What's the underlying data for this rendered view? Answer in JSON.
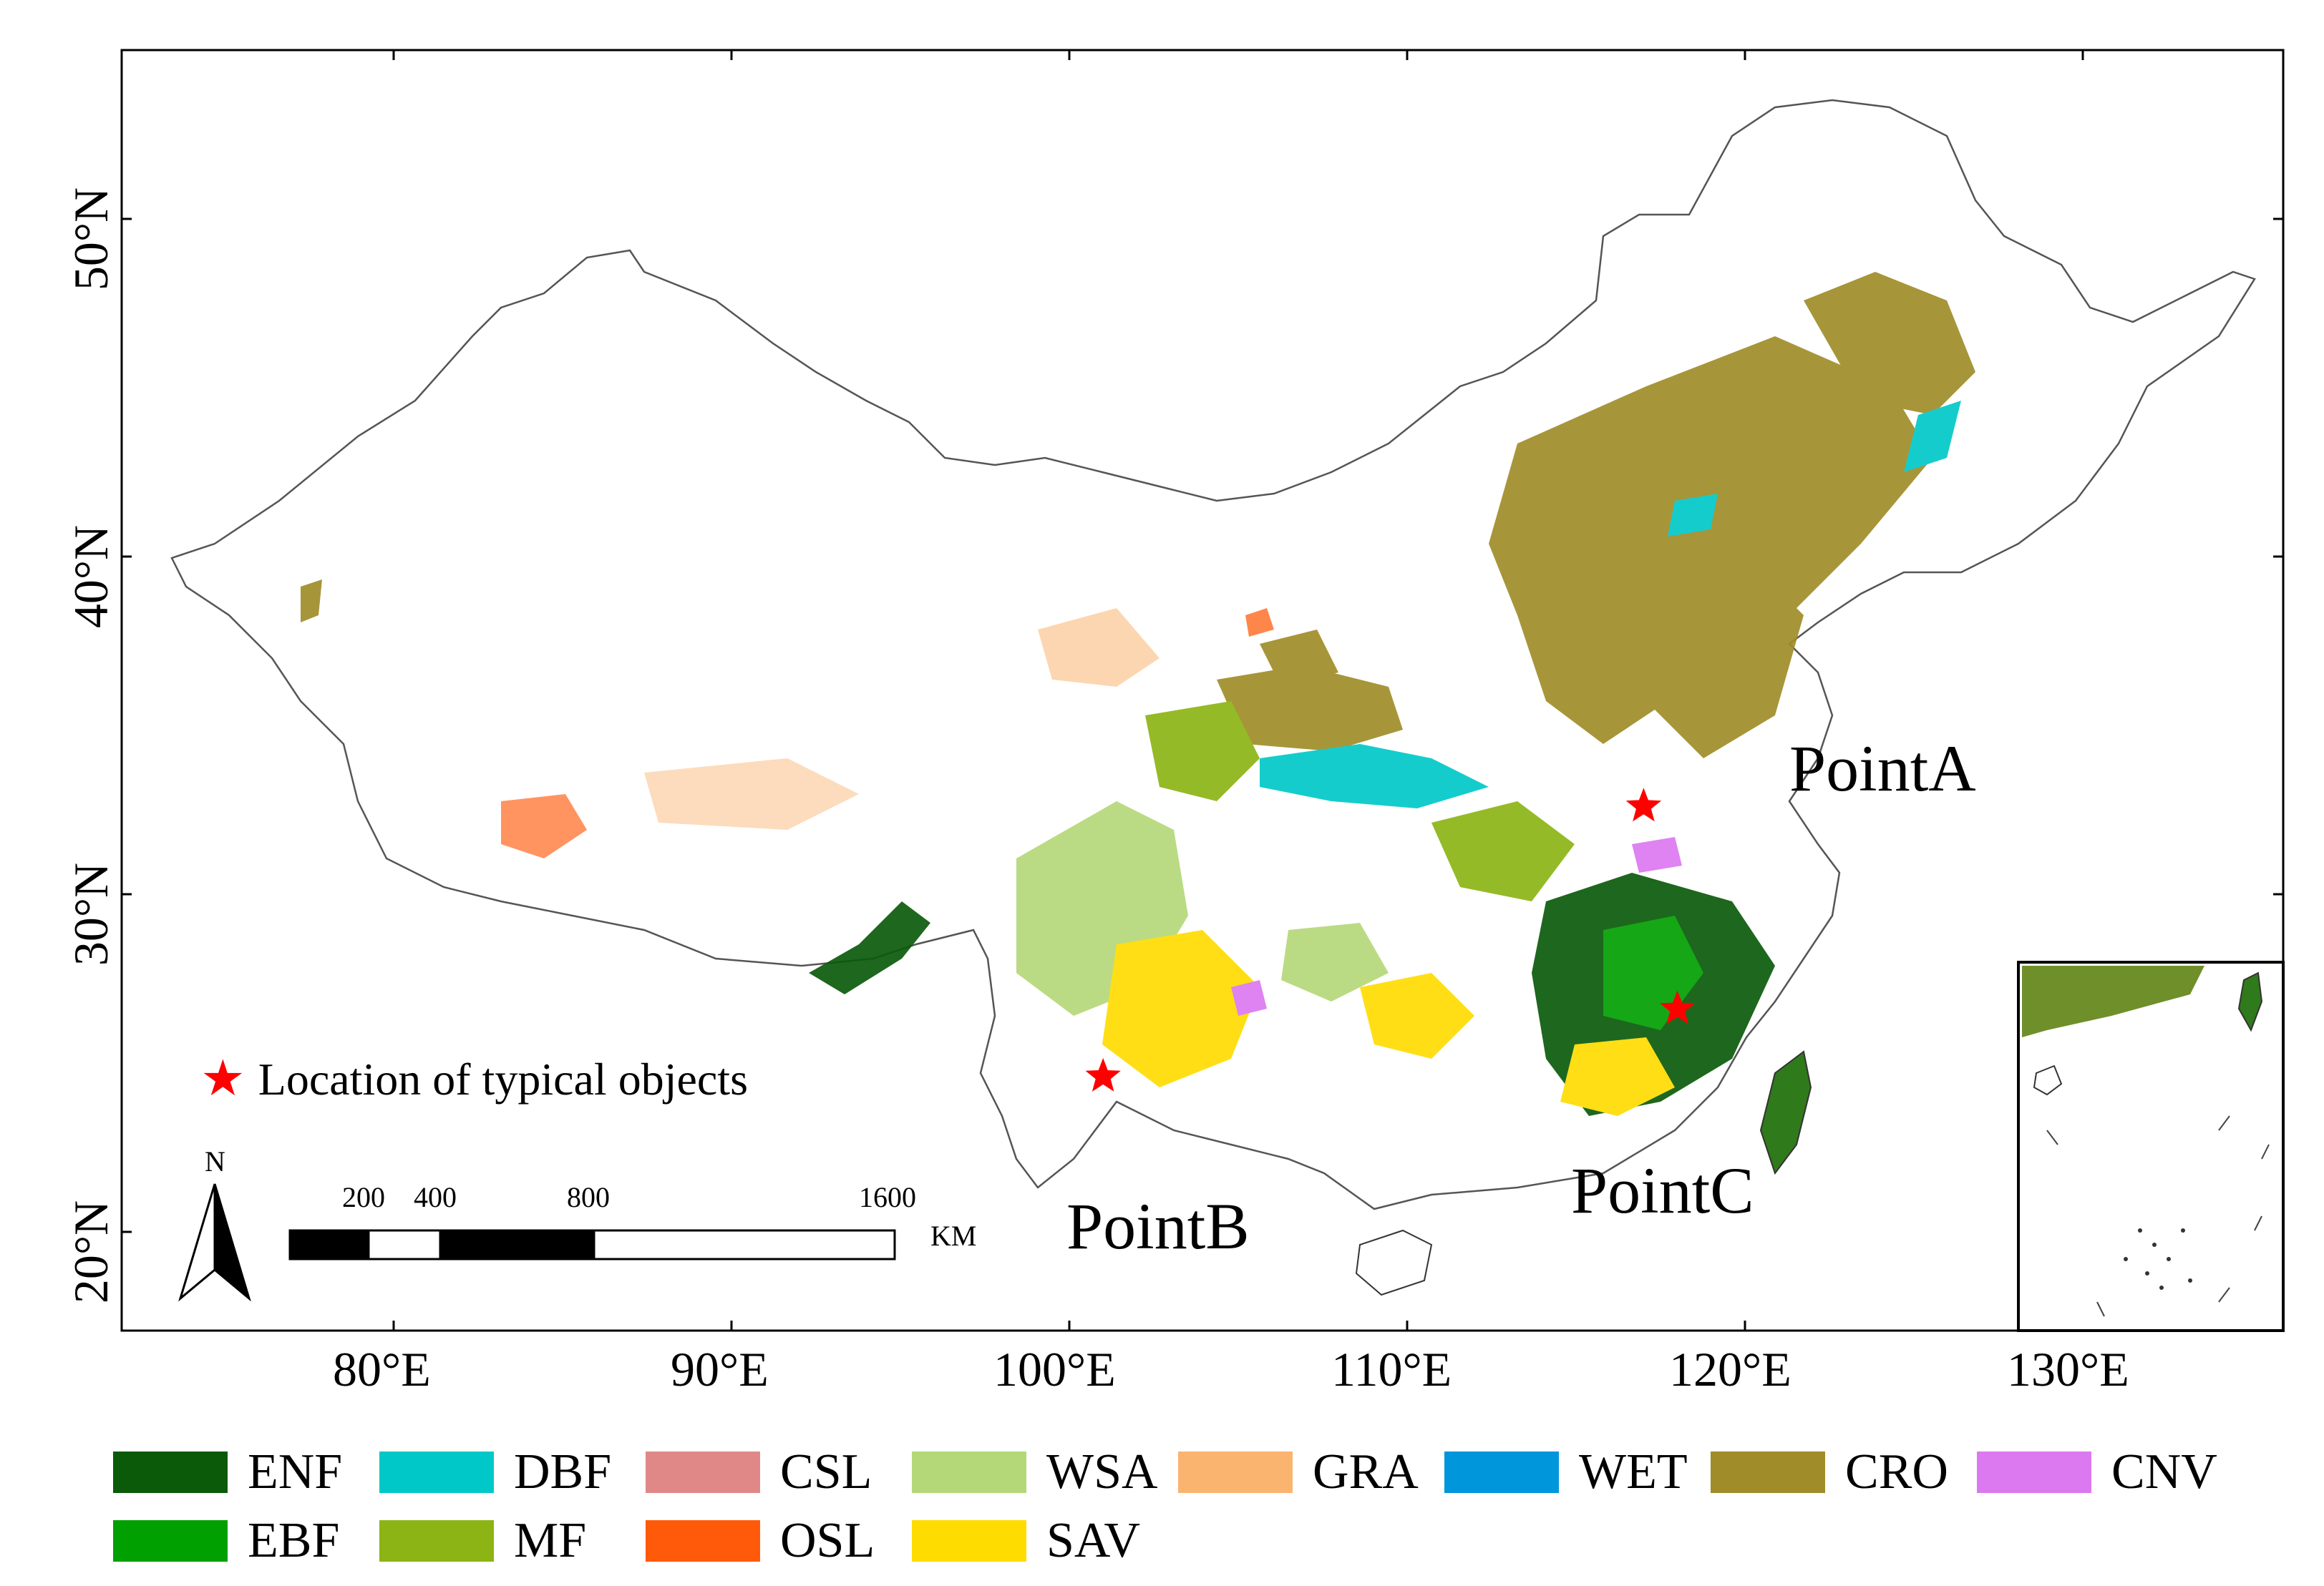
{
  "map": {
    "lat_labels": [
      "50°N",
      "40°N",
      "30°N",
      "20°N"
    ],
    "lon_labels": [
      "80°E",
      "90°E",
      "100°E",
      "110°E",
      "120°E",
      "130°E"
    ]
  },
  "points": [
    {
      "label": "PointA",
      "lon": 117.0,
      "lat": 32.6
    },
    {
      "label": "PointB",
      "lon": 101.0,
      "lat": 24.6
    },
    {
      "label": "PointC",
      "lon": 118.0,
      "lat": 26.6
    }
  ],
  "marker_legend": {
    "label": "Location of typical objects",
    "color": "#ff0000"
  },
  "scale_bar": {
    "ticks": [
      "200",
      "400",
      "800",
      "1600"
    ],
    "unit": "KM"
  },
  "north_arrow": {
    "label": "N"
  },
  "legend": {
    "rows": [
      [
        {
          "code": "ENF",
          "color": "#0a5a0a"
        },
        {
          "code": "DBF",
          "color": "#00c8c8"
        },
        {
          "code": "CSL",
          "color": "#e08888"
        },
        {
          "code": "WSA",
          "color": "#b4d878"
        },
        {
          "code": "GRA",
          "color": "#fab470"
        },
        {
          "code": "WET",
          "color": "#0096dc"
        },
        {
          "code": "CRO",
          "color": "#a08c28"
        },
        {
          "code": "CNV",
          "color": "#dc78f0"
        }
      ],
      [
        {
          "code": "EBF",
          "color": "#00a000"
        },
        {
          "code": "MF",
          "color": "#8cb414"
        },
        {
          "code": "OSL",
          "color": "#ff5a0a"
        },
        {
          "code": "SAV",
          "color": "#ffdc00"
        }
      ]
    ]
  }
}
